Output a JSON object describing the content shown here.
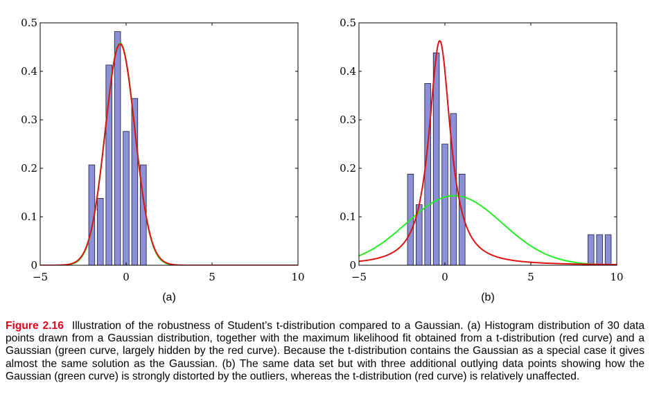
{
  "colors": {
    "bar_fill": "#8b8fd6",
    "bar_edge": "#1a1a3a",
    "student_t_curve": "#dd1111",
    "gaussian_curve": "#22ee22"
  },
  "chart_data": [
    {
      "panel": "(a)",
      "type": "bar",
      "xlim": [
        -5,
        10
      ],
      "ylim": [
        0,
        0.5
      ],
      "xticks": [
        "−5",
        "0",
        "5",
        "10"
      ],
      "yticks": [
        "0",
        "0.1",
        "0.2",
        "0.3",
        "0.4",
        "0.5"
      ],
      "bar_width": 0.35,
      "bars": {
        "x": [
          -2.0,
          -1.5,
          -1.0,
          -0.5,
          0.0,
          0.5,
          1.0
        ],
        "values": [
          0.207,
          0.138,
          0.413,
          0.482,
          0.276,
          0.344,
          0.207
        ]
      },
      "series": [
        {
          "color_key": "gaussian_curve",
          "model": "gaussian",
          "mu": -0.35,
          "sigma": 0.87
        },
        {
          "color_key": "student_t_curve",
          "model": "student-t",
          "mu": -0.35,
          "sigma": 0.87,
          "nu": 60
        }
      ]
    },
    {
      "panel": "(b)",
      "type": "bar",
      "xlim": [
        -5,
        10
      ],
      "ylim": [
        0,
        0.5
      ],
      "xticks": [
        "−5",
        "0",
        "5",
        "10"
      ],
      "yticks": [
        "0",
        "0.1",
        "0.2",
        "0.3",
        "0.4",
        "0.5"
      ],
      "bar_width": 0.35,
      "bars": {
        "x": [
          -2.0,
          -1.5,
          -1.0,
          -0.5,
          0.0,
          0.5,
          1.0,
          8.5,
          9.0,
          9.5
        ],
        "values": [
          0.188,
          0.125,
          0.375,
          0.438,
          0.25,
          0.313,
          0.188,
          0.063,
          0.063,
          0.063
        ]
      },
      "series": [
        {
          "color_key": "gaussian_curve",
          "model": "gaussian",
          "mu": 0.55,
          "sigma": 2.78
        },
        {
          "color_key": "student_t_curve",
          "model": "student-t",
          "mu": -0.3,
          "sigma": 0.72,
          "nu": 1.3
        }
      ]
    }
  ],
  "caption": {
    "label": "Figure 2.16",
    "text": "Illustration of the robustness of Student’s t-distribution compared to a Gaussian. (a) Histogram distribution of 30 data points drawn from a Gaussian distribution, together with the maximum likelihood fit obtained from a t-distribution (red curve) and a Gaussian (green curve, largely hidden by the red curve). Because the t-distribution contains the Gaussian as a special case it gives almost the same solution as the Gaussian. (b) The same data set but with three additional outlying data points showing how the Gaussian (green curve) is strongly distorted by the outliers, whereas the t-distribution (red curve) is relatively unaffected."
  }
}
